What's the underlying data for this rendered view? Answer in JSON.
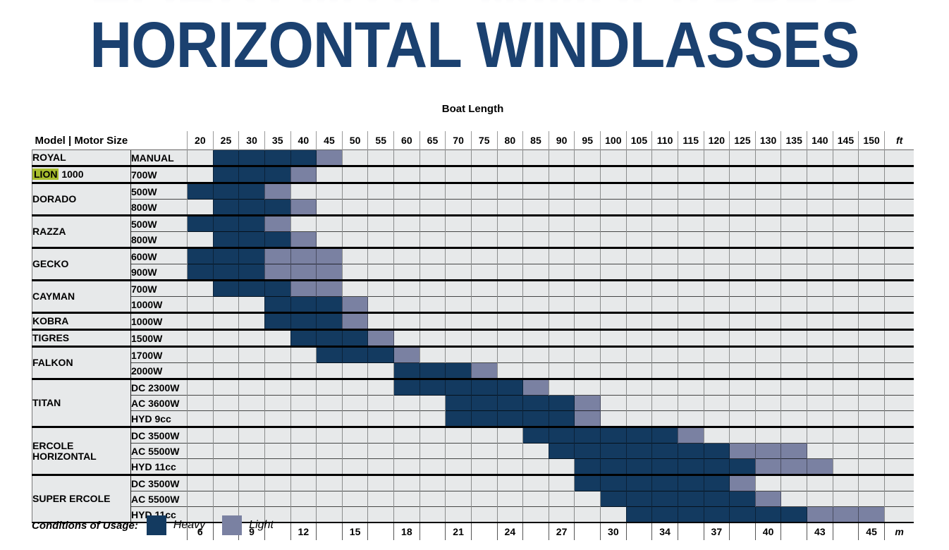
{
  "title": "HORIZONTAL WINDLASSES",
  "legend": {
    "label": "Conditions of Usage:",
    "heavy": "Heavy",
    "light": "Light"
  },
  "colors": {
    "heavy": "#133A60",
    "light": "#7A81A2",
    "empty_cell": "#E7E9EA",
    "highlight": "#A8BE2E",
    "title_navy": "#1B4170"
  },
  "chart_data": {
    "type": "heatmap",
    "title": "Boat Length",
    "corner_header": "Model | Motor Size",
    "ft_unit": "ft",
    "m_unit": "m",
    "ft_columns": [
      20,
      25,
      30,
      35,
      40,
      45,
      50,
      55,
      60,
      65,
      70,
      75,
      80,
      85,
      90,
      95,
      100,
      105,
      110,
      115,
      120,
      125,
      130,
      135,
      140,
      145,
      150
    ],
    "m_values": [
      6,
      9,
      12,
      15,
      18,
      21,
      24,
      27,
      30,
      34,
      37,
      40,
      43,
      45
    ],
    "rows": [
      {
        "model": "ROYAL",
        "motor": "MANUAL",
        "heavy": [
          25,
          40
        ],
        "light": [
          45,
          45
        ]
      },
      {
        "model": "LION 1000",
        "model_highlight": "LION",
        "motor": "700W",
        "heavy": [
          25,
          35
        ],
        "light": [
          40,
          40
        ]
      },
      {
        "model": "DORADO",
        "motor": "500W",
        "heavy": [
          20,
          30
        ],
        "light": [
          35,
          35
        ]
      },
      {
        "model": "DORADO",
        "motor": "800W",
        "heavy": [
          25,
          35
        ],
        "light": [
          40,
          40
        ]
      },
      {
        "model": "RAZZA",
        "motor": "500W",
        "heavy": [
          20,
          30
        ],
        "light": [
          35,
          35
        ]
      },
      {
        "model": "RAZZA",
        "motor": "800W",
        "heavy": [
          25,
          35
        ],
        "light": [
          40,
          40
        ]
      },
      {
        "model": "GECKO",
        "motor": "600W",
        "heavy": [
          20,
          30
        ],
        "light": [
          35,
          45
        ]
      },
      {
        "model": "GECKO",
        "motor": "900W",
        "heavy": [
          20,
          30
        ],
        "light": [
          35,
          45
        ]
      },
      {
        "model": "CAYMAN",
        "motor": "700W",
        "heavy": [
          25,
          35
        ],
        "light": [
          40,
          45
        ]
      },
      {
        "model": "CAYMAN",
        "motor": "1000W",
        "heavy": [
          35,
          45
        ],
        "light": [
          50,
          50
        ]
      },
      {
        "model": "KOBRA",
        "motor": "1000W",
        "heavy": [
          35,
          45
        ],
        "light": [
          50,
          50
        ]
      },
      {
        "model": "TIGRES",
        "motor": "1500W",
        "heavy": [
          40,
          50
        ],
        "light": [
          55,
          55
        ]
      },
      {
        "model": "FALKON",
        "motor": "1700W",
        "heavy": [
          45,
          55
        ],
        "light": [
          60,
          60
        ]
      },
      {
        "model": "FALKON",
        "motor": "2000W",
        "heavy": [
          60,
          70
        ],
        "light": [
          75,
          75
        ]
      },
      {
        "model": "TITAN",
        "motor": "DC 2300W",
        "heavy": [
          60,
          80
        ],
        "light": [
          85,
          85
        ]
      },
      {
        "model": "TITAN",
        "motor": "AC 3600W",
        "heavy": [
          70,
          90
        ],
        "light": [
          95,
          95
        ]
      },
      {
        "model": "TITAN",
        "motor": "HYD 9cc",
        "heavy": [
          70,
          90
        ],
        "light": [
          95,
          95
        ]
      },
      {
        "model": "ERCOLE HORIZONTAL",
        "motor": "DC 3500W",
        "heavy": [
          85,
          110
        ],
        "light": [
          115,
          115
        ]
      },
      {
        "model": "ERCOLE HORIZONTAL",
        "motor": "AC 5500W",
        "heavy": [
          90,
          120
        ],
        "light": [
          125,
          135
        ]
      },
      {
        "model": "ERCOLE HORIZONTAL",
        "motor": "HYD 11cc",
        "heavy": [
          95,
          125
        ],
        "light": [
          130,
          140
        ]
      },
      {
        "model": "SUPER ERCOLE",
        "motor": "DC 3500W",
        "heavy": [
          95,
          120
        ],
        "light": [
          125,
          125
        ]
      },
      {
        "model": "SUPER ERCOLE",
        "motor": "AC 5500W",
        "heavy": [
          100,
          125
        ],
        "light": [
          130,
          130
        ]
      },
      {
        "model": "SUPER ERCOLE",
        "motor": "HYD 11cc",
        "heavy": [
          105,
          135
        ],
        "light": [
          140,
          150
        ]
      }
    ]
  }
}
